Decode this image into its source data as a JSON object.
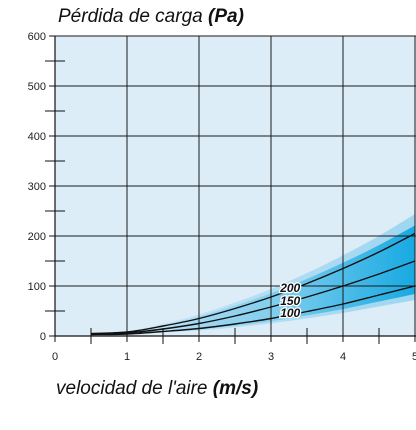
{
  "chart_data": {
    "type": "line",
    "title_prefix": "Pérdida de carga ",
    "title_unit": "(Pa)",
    "xlabel_prefix": "velocidad de l'aire ",
    "xlabel_unit": "(m/s)",
    "xlim": [
      0,
      5
    ],
    "ylim": [
      0,
      600
    ],
    "x_ticks": [
      "0",
      "1",
      "2",
      "3",
      "4",
      "5"
    ],
    "y_ticks": [
      "0",
      "100",
      "200",
      "300",
      "400",
      "500",
      "600"
    ],
    "grid": true,
    "series": [
      {
        "name": "200",
        "x": [
          0.5,
          1,
          1.5,
          2,
          2.5,
          3,
          3.5,
          4,
          4.5,
          5
        ],
        "y": [
          5,
          8,
          20,
          35,
          55,
          78,
          105,
          135,
          168,
          205
        ]
      },
      {
        "name": "150",
        "x": [
          0.5,
          1,
          1.5,
          2,
          2.5,
          3,
          3.5,
          4,
          4.5,
          5
        ],
        "y": [
          4,
          6,
          14,
          25,
          40,
          58,
          78,
          100,
          124,
          150
        ]
      },
      {
        "name": "100",
        "x": [
          0.5,
          1,
          1.5,
          2,
          2.5,
          3,
          3.5,
          4,
          4.5,
          5
        ],
        "y": [
          3,
          4,
          9,
          15,
          24,
          35,
          49,
          64,
          82,
          100
        ]
      }
    ],
    "colors": {
      "plot_bg": "#dcedf8",
      "band_outer": "#9ed6f0",
      "band_inner": "#2db4e6",
      "curve": "#111111"
    }
  }
}
